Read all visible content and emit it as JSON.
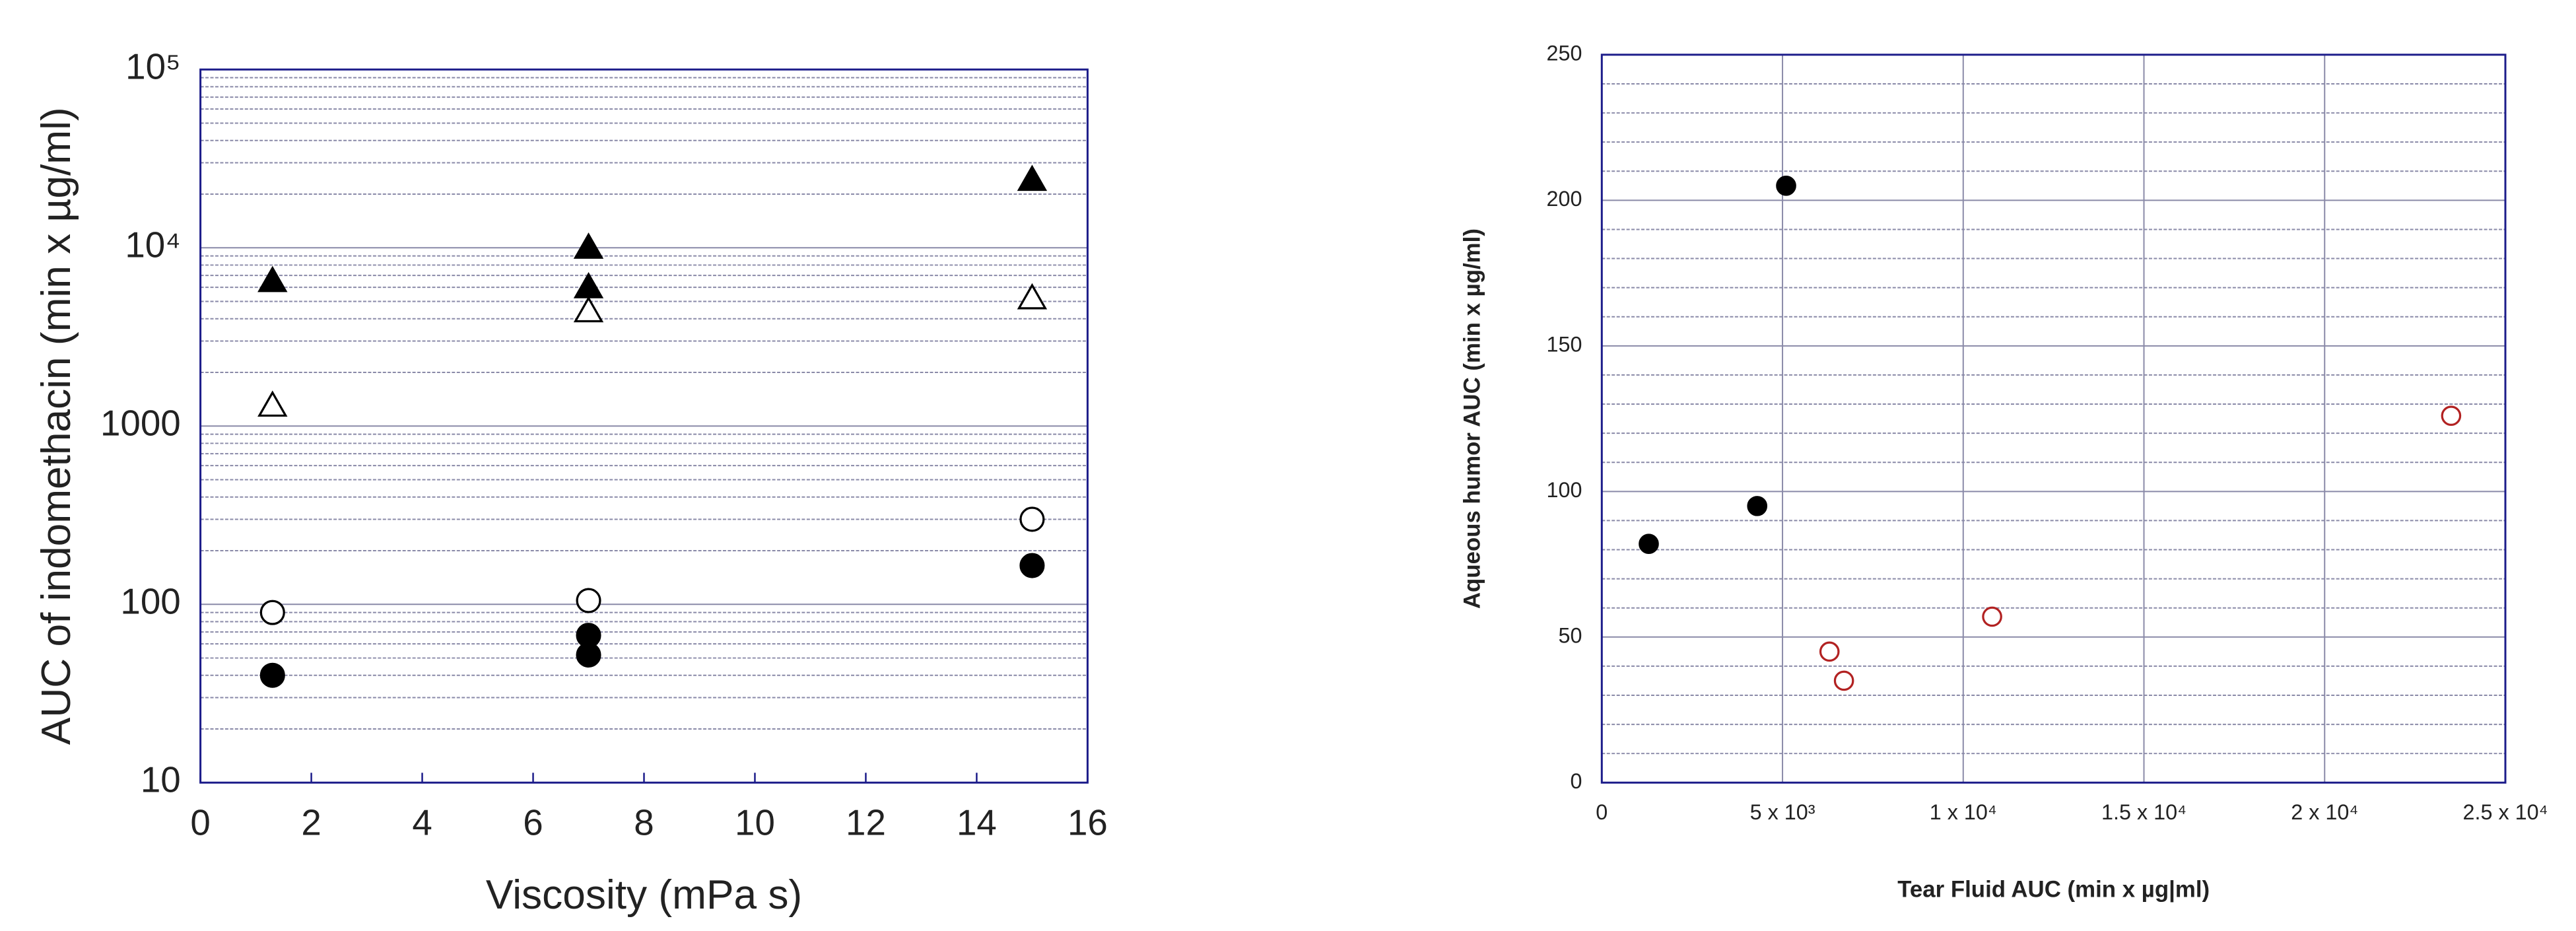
{
  "chart_data": [
    {
      "type": "scatter",
      "xlabel": "Viscosity (mPa s)",
      "ylabel": "AUC of indomethacin (min x µg/ml)",
      "xlim": [
        0,
        16
      ],
      "xticks": [
        0,
        2,
        4,
        6,
        8,
        10,
        12,
        14,
        16
      ],
      "ylim": [
        10,
        100000
      ],
      "log_y": true,
      "yticks": [
        10,
        100,
        1000,
        {
          "value": 10000,
          "label": "10⁴"
        },
        {
          "value": 100000,
          "label": "10⁵"
        }
      ],
      "grid": "y",
      "minor_grid": true,
      "frame_color": "#1c1c8a",
      "series": [
        {
          "marker": "triangle",
          "filled": true,
          "color": "#000000",
          "x": [
            1.3,
            7,
            7,
            15
          ],
          "values": [
            6500,
            10000,
            6000,
            24000
          ]
        },
        {
          "marker": "triangle",
          "filled": false,
          "color": "#000000",
          "x": [
            1.3,
            7,
            15
          ],
          "values": [
            1300,
            4400,
            5200
          ]
        },
        {
          "marker": "circle",
          "filled": false,
          "color": "#000000",
          "x": [
            1.3,
            7,
            15
          ],
          "values": [
            90,
            105,
            300
          ]
        },
        {
          "marker": "circle",
          "filled": true,
          "color": "#000000",
          "x": [
            1.3,
            7,
            7,
            15
          ],
          "values": [
            40,
            67,
            52,
            165
          ]
        }
      ]
    },
    {
      "type": "scatter",
      "xlabel": "Tear Fluid AUC (min x µg|ml)",
      "ylabel": "Aqueous humor AUC (min x µg/ml)",
      "xlim": [
        0,
        25000
      ],
      "xticks": [
        0,
        {
          "value": 5000,
          "label": "5 x 10³"
        },
        {
          "value": 10000,
          "label": "1 x 10⁴"
        },
        {
          "value": 15000,
          "label": "1.5 x 10⁴"
        },
        {
          "value": 20000,
          "label": "2 x 10⁴"
        },
        {
          "value": 25000,
          "label": "2.5 x 10⁴"
        }
      ],
      "ylim": [
        0,
        250
      ],
      "yticks": [
        0,
        50,
        100,
        150,
        200,
        250
      ],
      "grid": "both",
      "minor_grid": true,
      "y_subdivisions": 5,
      "frame_color": "#1c1c8a",
      "series": [
        {
          "marker": "circle",
          "filled": true,
          "color": "#000000",
          "x": [
            1300,
            4300,
            5100
          ],
          "values": [
            82,
            95,
            205
          ]
        },
        {
          "marker": "circle",
          "filled": false,
          "color": "#b22222",
          "x": [
            6300,
            6700,
            10800,
            23500
          ],
          "values": [
            45,
            35,
            57,
            126
          ]
        }
      ]
    }
  ]
}
